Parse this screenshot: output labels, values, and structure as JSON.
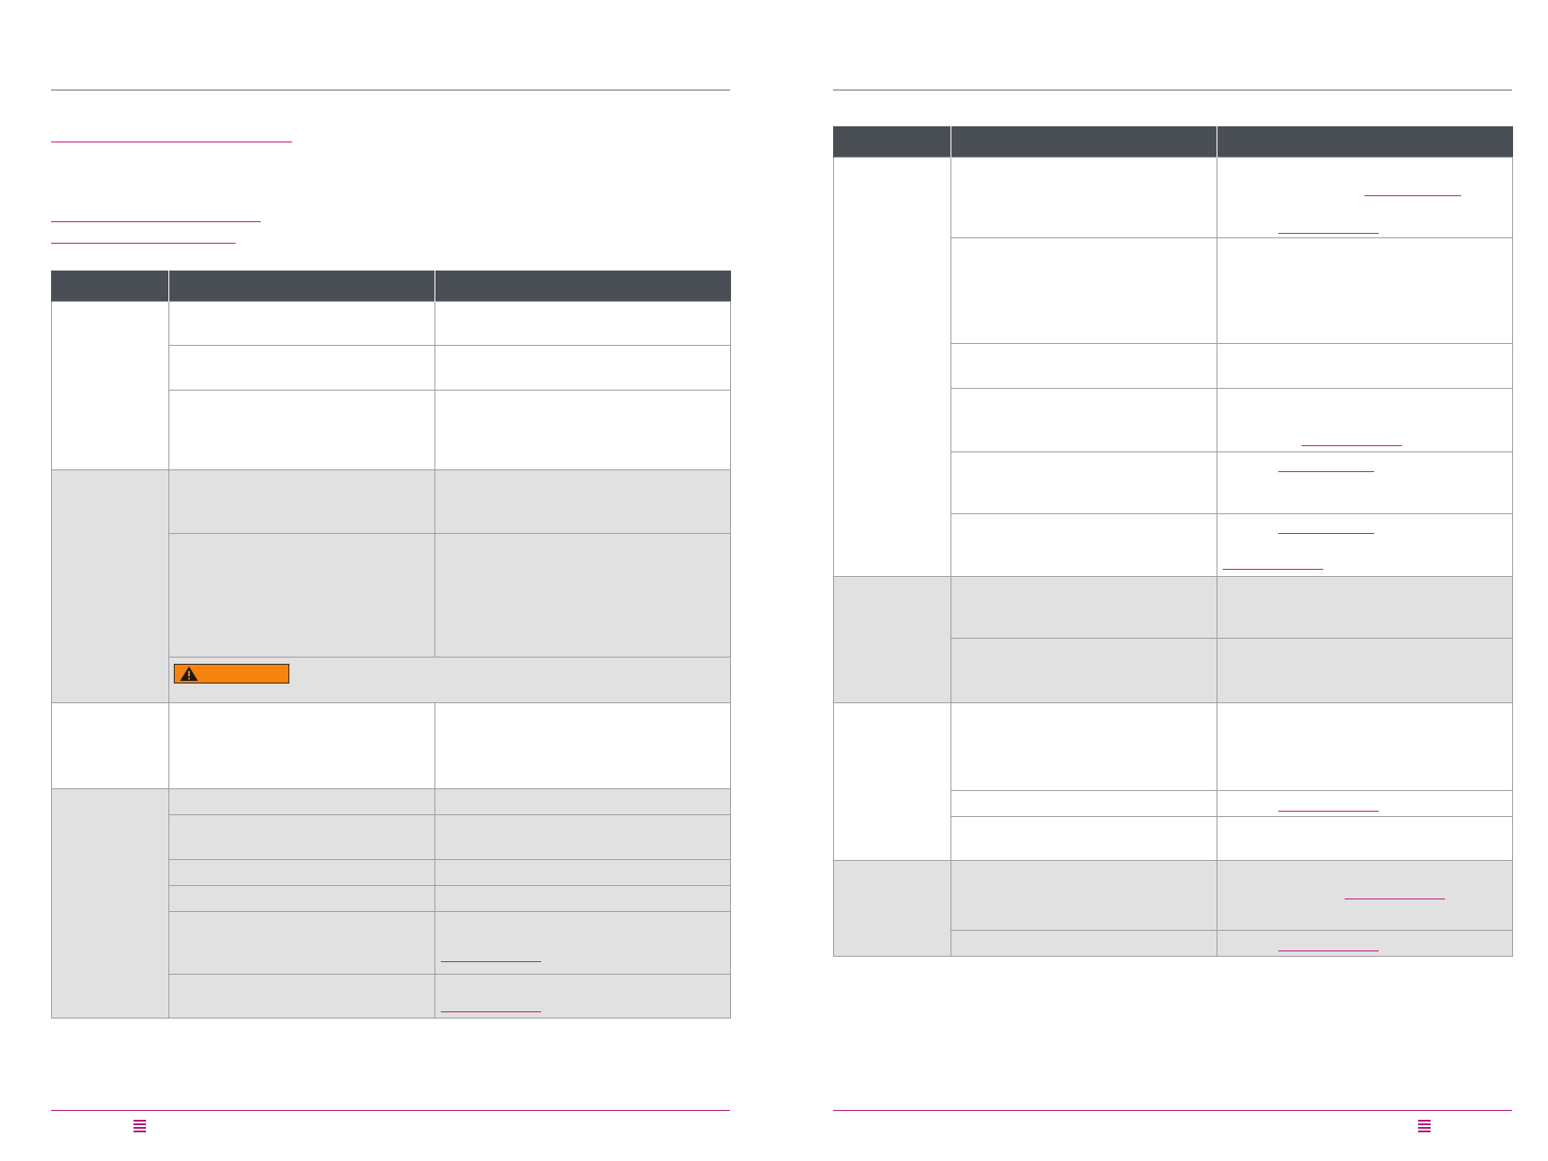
{
  "pages": [
    {
      "side": "left",
      "menu_icon": "menu-lines-icon",
      "warning_label": {
        "icon": "warning-triangle-icon",
        "color": "#f7840f"
      }
    },
    {
      "side": "right",
      "menu_icon": "menu-lines-icon"
    }
  ],
  "colors": {
    "accent": "#b3197a",
    "header_fill": "#4a4f55",
    "shaded_row": "#e2e1e2",
    "warning": "#f7840f"
  }
}
